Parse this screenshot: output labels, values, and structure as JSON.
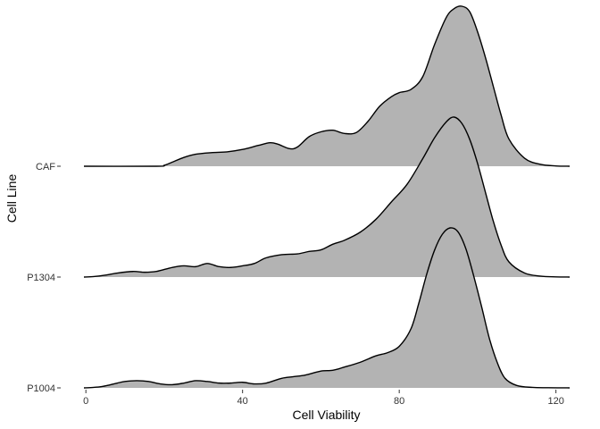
{
  "chart_data": {
    "type": "ridgeline",
    "title": "",
    "xlabel": "Cell Viability",
    "ylabel": "Cell Line",
    "xlim": [
      -0.5,
      123.5
    ],
    "xticks": [
      0,
      40,
      80,
      120
    ],
    "grid": false,
    "legend": "none",
    "fill_color": "#b3b3b3",
    "line_color": "#000000",
    "categories": [
      "CAF",
      "P1304",
      "P1004"
    ],
    "series": [
      {
        "name": "CAF",
        "x": [
          -0.5,
          18,
          20,
          22,
          25,
          28,
          32,
          36,
          40,
          44,
          47,
          49,
          52,
          54,
          57,
          60,
          63,
          66,
          69,
          72,
          75,
          78,
          80,
          83,
          86,
          89,
          92,
          94,
          96,
          98,
          100,
          102,
          104,
          106,
          108,
          112,
          116,
          120,
          123.5
        ],
        "density": [
          0,
          0,
          0.006,
          0.025,
          0.055,
          0.075,
          0.085,
          0.09,
          0.105,
          0.13,
          0.147,
          0.138,
          0.11,
          0.12,
          0.185,
          0.215,
          0.225,
          0.205,
          0.21,
          0.28,
          0.375,
          0.435,
          0.46,
          0.48,
          0.56,
          0.76,
          0.93,
          0.985,
          1.0,
          0.965,
          0.84,
          0.68,
          0.5,
          0.32,
          0.17,
          0.05,
          0.012,
          0.002,
          0
        ]
      },
      {
        "name": "P1304",
        "x": [
          -0.5,
          2,
          5,
          8,
          12,
          15,
          18,
          22,
          25,
          28,
          31,
          34,
          37,
          40,
          43,
          46,
          50,
          54,
          57,
          60,
          63,
          66,
          70,
          74,
          78,
          82,
          86,
          89,
          92,
          94,
          96,
          98,
          100,
          102,
          104,
          106,
          108,
          112,
          116,
          120,
          123.5
        ],
        "density": [
          0,
          0.003,
          0.012,
          0.025,
          0.035,
          0.03,
          0.035,
          0.06,
          0.07,
          0.065,
          0.085,
          0.065,
          0.06,
          0.07,
          0.085,
          0.12,
          0.14,
          0.145,
          0.16,
          0.17,
          0.205,
          0.23,
          0.28,
          0.36,
          0.47,
          0.58,
          0.74,
          0.87,
          0.97,
          1.0,
          0.96,
          0.86,
          0.71,
          0.53,
          0.35,
          0.2,
          0.095,
          0.025,
          0.006,
          0.001,
          0
        ]
      },
      {
        "name": "P1004",
        "x": [
          -0.5,
          2,
          4,
          6,
          8,
          10,
          13,
          16,
          19,
          22,
          25,
          28,
          31,
          34,
          37,
          40,
          43,
          46,
          50,
          53,
          56,
          60,
          63,
          66,
          70,
          74,
          77,
          80,
          83,
          85,
          87,
          89,
          91,
          93,
          95,
          97,
          99,
          101,
          103,
          105,
          107,
          110,
          114,
          118,
          123.5
        ],
        "density": [
          0,
          0.003,
          0.008,
          0.018,
          0.03,
          0.04,
          0.045,
          0.04,
          0.025,
          0.02,
          0.03,
          0.045,
          0.04,
          0.03,
          0.03,
          0.035,
          0.025,
          0.03,
          0.06,
          0.07,
          0.08,
          0.105,
          0.11,
          0.13,
          0.16,
          0.2,
          0.22,
          0.26,
          0.37,
          0.53,
          0.71,
          0.86,
          0.96,
          1.0,
          0.975,
          0.87,
          0.7,
          0.51,
          0.31,
          0.16,
          0.06,
          0.015,
          0.003,
          0.001,
          0
        ]
      }
    ]
  }
}
